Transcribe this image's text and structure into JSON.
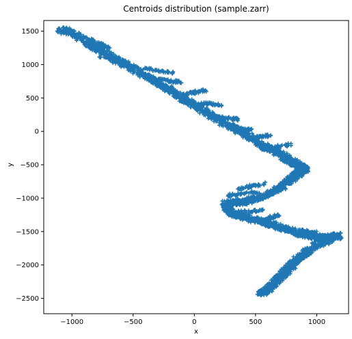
{
  "chart_data": {
    "type": "scatter",
    "title": "Centroids distribution (sample.zarr)",
    "xlabel": "x",
    "ylabel": "y",
    "xlim": [
      -1230,
      1260
    ],
    "ylim": [
      -2730,
      1660
    ],
    "xticks": [
      -1000,
      -500,
      0,
      500,
      1000
    ],
    "yticks": [
      1500,
      1000,
      500,
      0,
      -500,
      -1000,
      -1500,
      -2000,
      -2500
    ],
    "xtick_labels": [
      "−1000",
      "−500",
      "0",
      "500",
      "1000"
    ],
    "ytick_labels": [
      "1500",
      "1000",
      "500",
      "0",
      "−500",
      "−1000",
      "−1500",
      "−2000",
      "−2500"
    ],
    "marker": "plus",
    "grid": false,
    "series": [
      {
        "color": "#1f77b4",
        "trend": [
          [
            -1100,
            1540
          ],
          [
            -950,
            1420
          ],
          [
            -800,
            1250
          ],
          [
            -650,
            1080
          ],
          [
            -500,
            940
          ],
          [
            -350,
            780
          ],
          [
            -200,
            620
          ],
          [
            -50,
            450
          ],
          [
            100,
            280
          ],
          [
            250,
            120
          ],
          [
            400,
            -20
          ],
          [
            550,
            -200
          ],
          [
            700,
            -330
          ],
          [
            820,
            -480
          ],
          [
            900,
            -560
          ],
          [
            860,
            -620
          ],
          [
            800,
            -700
          ],
          [
            700,
            -850
          ],
          [
            560,
            -980
          ],
          [
            420,
            -1050
          ],
          [
            250,
            -1100
          ],
          [
            300,
            -1230
          ],
          [
            450,
            -1300
          ],
          [
            600,
            -1380
          ],
          [
            750,
            -1460
          ],
          [
            900,
            -1550
          ],
          [
            1050,
            -1600
          ],
          [
            1180,
            -1560
          ],
          [
            1000,
            -1700
          ],
          [
            880,
            -1850
          ],
          [
            800,
            -2000
          ],
          [
            720,
            -2150
          ],
          [
            640,
            -2300
          ],
          [
            570,
            -2420
          ]
        ],
        "spurs": [
          [
            -850,
            1380,
            -700,
            1250
          ],
          [
            -760,
            1130,
            -560,
            1050
          ],
          [
            -420,
            940,
            -180,
            880
          ],
          [
            -320,
            780,
            -120,
            740
          ],
          [
            -60,
            560,
            100,
            620
          ],
          [
            20,
            420,
            230,
            400
          ],
          [
            180,
            210,
            370,
            180
          ],
          [
            300,
            40,
            480,
            20
          ],
          [
            430,
            -110,
            620,
            -60
          ],
          [
            560,
            -260,
            780,
            -200
          ],
          [
            700,
            -430,
            900,
            -560
          ],
          [
            360,
            -860,
            570,
            -780
          ],
          [
            280,
            -960,
            540,
            -900
          ],
          [
            240,
            -1060,
            490,
            -1000
          ],
          [
            330,
            -1220,
            560,
            -1170
          ],
          [
            560,
            -1320,
            700,
            -1250
          ],
          [
            860,
            -1480,
            1000,
            -1520
          ],
          [
            600,
            -2350,
            520,
            -2430
          ]
        ]
      }
    ]
  }
}
